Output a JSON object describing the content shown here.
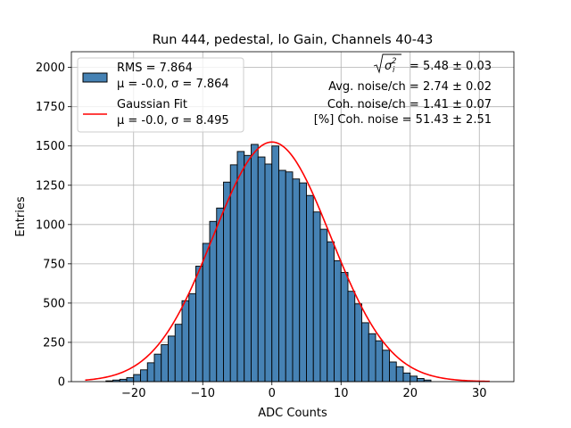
{
  "chart_data": {
    "type": "bar",
    "title": "Run 444, pedestal, lo Gain, Channels 40-43",
    "xlabel": "ADC Counts",
    "ylabel": "Entries",
    "xlim": [
      -29,
      35
    ],
    "ylim": [
      0,
      2100
    ],
    "xticks": [
      -20,
      -10,
      0,
      10,
      20,
      30
    ],
    "xtick_labels": [
      "−20",
      "−10",
      "0",
      "10",
      "20",
      "30"
    ],
    "yticks": [
      0,
      250,
      500,
      750,
      1000,
      1250,
      1500,
      1750,
      2000
    ],
    "ytick_labels": [
      "0",
      "250",
      "500",
      "750",
      "1000",
      "1250",
      "1500",
      "1750",
      "2000"
    ],
    "grid": true,
    "legend_position": "top-left",
    "histogram": {
      "name_line1": "RMS = 7.864",
      "name_line2": "μ = -0.0, σ = 7.864",
      "color": "#4682b4",
      "edge_color": "#000000",
      "bin_width": 1,
      "bin_start": -24,
      "values": [
        5,
        10,
        15,
        25,
        45,
        75,
        120,
        175,
        235,
        290,
        365,
        515,
        560,
        735,
        880,
        1020,
        1105,
        1270,
        1380,
        1465,
        1440,
        1510,
        1430,
        1385,
        1500,
        1345,
        1335,
        1290,
        1265,
        1185,
        1080,
        970,
        890,
        770,
        695,
        575,
        495,
        375,
        305,
        260,
        200,
        125,
        95,
        55,
        35,
        20,
        10,
        0
      ]
    },
    "fit": {
      "name_line1": "Gaussian Fit",
      "name_line2": "μ = -0.0, σ = 8.495",
      "color": "#ff0000",
      "mu": 0.0,
      "sigma": 8.495,
      "amplitude": 1525,
      "x_range": [
        -27,
        31.5
      ]
    },
    "annotations": {
      "sigma_label": "= 5.48 ± 0.03",
      "avg_noise": "Avg. noise/ch = 2.74 ± 0.02",
      "coh_noise": "Coh. noise/ch = 1.41 ± 0.07",
      "coh_percent": "[%] Coh. noise = 51.43 ± 2.51"
    }
  }
}
